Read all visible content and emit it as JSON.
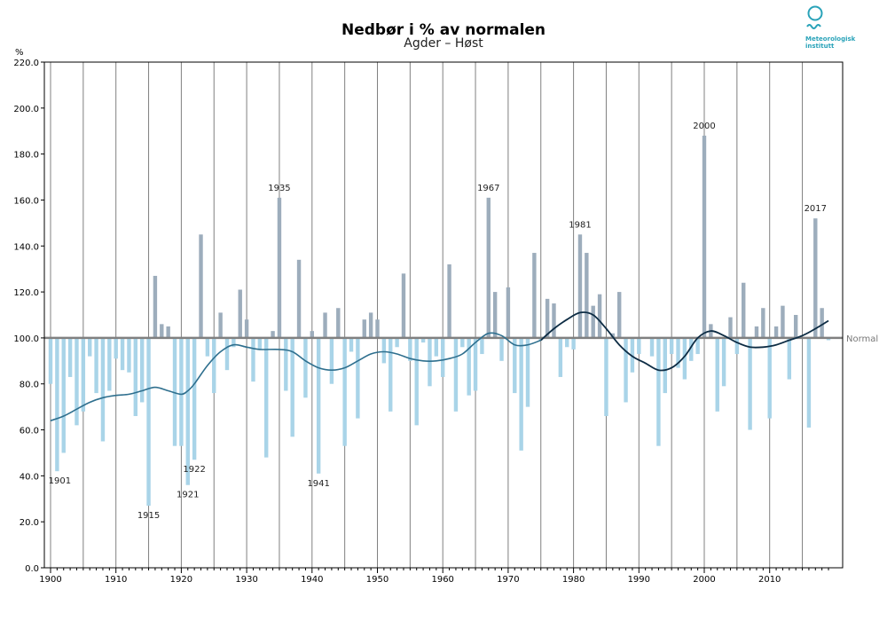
{
  "chart_data": {
    "type": "bar",
    "title": "Nedbør i % av normalen",
    "subtitle": "Agder – Høst",
    "ylabel": "%",
    "ylim": [
      0,
      220
    ],
    "yticks": [
      0,
      20,
      40,
      60,
      80,
      100,
      120,
      140,
      160,
      180,
      200,
      220
    ],
    "ytick_labels": [
      "0.0",
      "20.0",
      "40.0",
      "60.0",
      "80.0",
      "100.0",
      "120.0",
      "140.0",
      "160.0",
      "180.0",
      "200.0",
      "220.0"
    ],
    "xlim": [
      1900,
      2019
    ],
    "xticks": [
      1900,
      1910,
      1920,
      1930,
      1940,
      1950,
      1960,
      1970,
      1980,
      1990,
      2000,
      2010
    ],
    "baseline": 100,
    "baseline_label": "Normal",
    "years": [
      1900,
      1901,
      1902,
      1903,
      1904,
      1905,
      1906,
      1907,
      1908,
      1909,
      1910,
      1911,
      1912,
      1913,
      1914,
      1915,
      1916,
      1917,
      1918,
      1919,
      1920,
      1921,
      1922,
      1923,
      1924,
      1925,
      1926,
      1927,
      1928,
      1929,
      1930,
      1931,
      1932,
      1933,
      1934,
      1935,
      1936,
      1937,
      1938,
      1939,
      1940,
      1941,
      1942,
      1943,
      1944,
      1945,
      1946,
      1947,
      1948,
      1949,
      1950,
      1951,
      1952,
      1953,
      1954,
      1955,
      1956,
      1957,
      1958,
      1959,
      1960,
      1961,
      1962,
      1963,
      1964,
      1965,
      1966,
      1967,
      1968,
      1969,
      1970,
      1971,
      1972,
      1973,
      1974,
      1975,
      1976,
      1977,
      1978,
      1979,
      1980,
      1981,
      1982,
      1983,
      1984,
      1985,
      1986,
      1987,
      1988,
      1989,
      1990,
      1991,
      1992,
      1993,
      1994,
      1995,
      1996,
      1997,
      1998,
      1999,
      2000,
      2001,
      2002,
      2003,
      2004,
      2005,
      2006,
      2007,
      2008,
      2009,
      2010,
      2011,
      2012,
      2013,
      2014,
      2015,
      2016,
      2017,
      2018,
      2019
    ],
    "values": [
      80,
      42,
      50,
      83,
      62,
      68,
      92,
      76,
      55,
      77,
      91,
      86,
      85,
      66,
      72,
      27,
      127,
      106,
      105,
      53,
      53,
      36,
      47,
      145,
      92,
      76,
      111,
      86,
      96,
      121,
      108,
      81,
      95,
      48,
      103,
      161,
      77,
      57,
      134,
      74,
      103,
      41,
      111,
      80,
      113,
      53,
      94,
      65,
      108,
      111,
      108,
      89,
      68,
      96,
      128,
      90,
      62,
      98,
      79,
      92,
      83,
      132,
      68,
      96,
      75,
      77,
      93,
      161,
      120,
      90,
      122,
      76,
      51,
      70,
      137,
      99,
      117,
      115,
      83,
      96,
      95,
      145,
      137,
      114,
      119,
      66,
      102,
      120,
      72,
      85,
      93,
      100,
      92,
      53,
      76,
      93,
      87,
      82,
      90,
      93,
      188,
      106,
      68,
      79,
      109,
      93,
      124,
      60,
      105,
      113,
      65,
      105,
      114,
      82,
      110,
      100,
      61,
      152,
      113,
      99
    ],
    "smooth": [
      [
        1900,
        64
      ],
      [
        1902,
        66
      ],
      [
        1904,
        69
      ],
      [
        1906,
        72
      ],
      [
        1908,
        74
      ],
      [
        1910,
        75
      ],
      [
        1912,
        75.5
      ],
      [
        1914,
        77
      ],
      [
        1916,
        78.5
      ],
      [
        1918,
        77
      ],
      [
        1920,
        75.5
      ],
      [
        1921,
        77
      ],
      [
        1922,
        80
      ],
      [
        1924,
        88
      ],
      [
        1926,
        94
      ],
      [
        1928,
        97
      ],
      [
        1930,
        96
      ],
      [
        1932,
        95
      ],
      [
        1935,
        95
      ],
      [
        1937,
        94
      ],
      [
        1939,
        90
      ],
      [
        1941,
        87
      ],
      [
        1943,
        86
      ],
      [
        1945,
        87
      ],
      [
        1947,
        90
      ],
      [
        1949,
        93
      ],
      [
        1951,
        94
      ],
      [
        1953,
        93
      ],
      [
        1955,
        91
      ],
      [
        1957,
        90
      ],
      [
        1959,
        90
      ],
      [
        1961,
        91
      ],
      [
        1963,
        93
      ],
      [
        1965,
        98
      ],
      [
        1967,
        102
      ],
      [
        1969,
        101
      ],
      [
        1971,
        97
      ],
      [
        1973,
        97
      ],
      [
        1975,
        99
      ],
      [
        1977,
        104
      ],
      [
        1979,
        108
      ],
      [
        1981,
        111
      ],
      [
        1983,
        110
      ],
      [
        1985,
        104
      ],
      [
        1987,
        97
      ],
      [
        1989,
        92
      ],
      [
        1991,
        89
      ],
      [
        1993,
        86
      ],
      [
        1995,
        87
      ],
      [
        1997,
        92
      ],
      [
        1999,
        100
      ],
      [
        2001,
        103
      ],
      [
        2003,
        101
      ],
      [
        2005,
        98
      ],
      [
        2007,
        96
      ],
      [
        2009,
        96
      ],
      [
        2011,
        97
      ],
      [
        2013,
        99
      ],
      [
        2015,
        101
      ],
      [
        2017,
        104
      ],
      [
        2019,
        107.5
      ]
    ],
    "annotations": [
      {
        "year": 1901,
        "label": "1901",
        "value": 42
      },
      {
        "year": 1915,
        "label": "1915",
        "value": 27
      },
      {
        "year": 1921,
        "label": "1921",
        "value": 36
      },
      {
        "year": 1922,
        "label": "1922",
        "value": 47
      },
      {
        "year": 1935,
        "label": "1935",
        "value": 161
      },
      {
        "year": 1941,
        "label": "1941",
        "value": 41
      },
      {
        "year": 1967,
        "label": "1967",
        "value": 161
      },
      {
        "year": 1981,
        "label": "1981",
        "value": 145
      },
      {
        "year": 2000,
        "label": "2000",
        "value": 188
      },
      {
        "year": 2017,
        "label": "2017",
        "value": 152
      }
    ],
    "colors": {
      "above": "#9dadbc",
      "below": "#a9d4e8",
      "smooth_old": "#2e6f8e",
      "smooth_new": "#0d2c44",
      "baseline": "#808080",
      "grid": "#808080"
    }
  },
  "logo": {
    "line1": "Meteorologisk",
    "line2": "institutt",
    "color": "#2aa3b9"
  }
}
